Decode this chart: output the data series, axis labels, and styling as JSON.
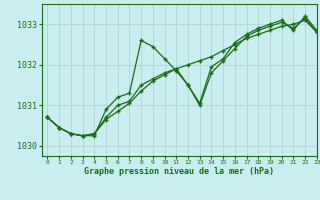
{
  "title": "Graphe pression niveau de la mer (hPa)",
  "background_color": "#c8eef0",
  "grid_color": "#b0d8d0",
  "line_color": "#1a6b1a",
  "marker_color": "#1a6b1a",
  "xlim": [
    -0.5,
    23
  ],
  "ylim": [
    1029.75,
    1033.5
  ],
  "yticks": [
    1030,
    1031,
    1032,
    1033
  ],
  "xticks": [
    0,
    1,
    2,
    3,
    4,
    5,
    6,
    7,
    8,
    9,
    10,
    11,
    12,
    13,
    14,
    15,
    16,
    17,
    18,
    19,
    20,
    21,
    22,
    23
  ],
  "series": [
    [
      1030.7,
      1030.45,
      1030.3,
      1030.25,
      1030.25,
      1030.9,
      1031.2,
      1031.3,
      1032.6,
      1032.45,
      1032.15,
      1031.85,
      1031.5,
      1031.05,
      1031.95,
      1032.15,
      1032.55,
      1032.75,
      1032.9,
      1033.0,
      1033.1,
      1032.85,
      1033.2,
      1032.85
    ],
    [
      1030.7,
      1030.45,
      1030.3,
      1030.25,
      1030.3,
      1030.65,
      1030.85,
      1031.05,
      1031.35,
      1031.6,
      1031.75,
      1031.9,
      1032.0,
      1032.1,
      1032.2,
      1032.35,
      1032.5,
      1032.65,
      1032.75,
      1032.85,
      1032.95,
      1033.0,
      1033.1,
      1032.8
    ],
    [
      1030.7,
      1030.45,
      1030.3,
      1030.25,
      1030.3,
      1030.7,
      1031.0,
      1031.1,
      1031.5,
      1031.65,
      1031.8,
      1031.9,
      1031.5,
      1031.0,
      1031.8,
      1032.1,
      1032.4,
      1032.7,
      1032.85,
      1032.95,
      1033.05,
      1032.9,
      1033.15,
      1032.8
    ]
  ]
}
